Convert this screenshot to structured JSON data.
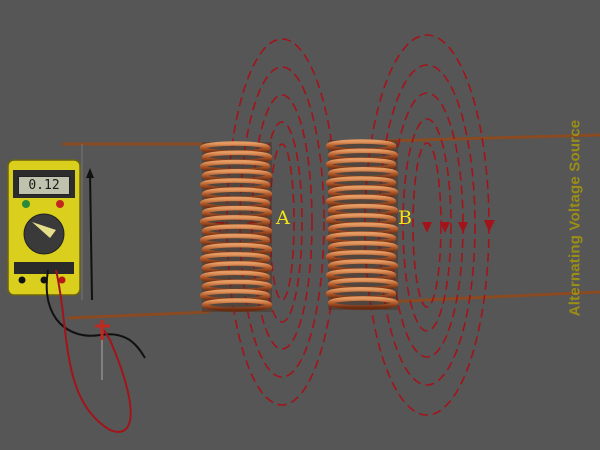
{
  "labels": {
    "coil_a": "A",
    "coil_b": "B",
    "source": "Alternating Voltage Source"
  },
  "multimeter": {
    "reading": "0.12"
  },
  "colors": {
    "background": "#565656",
    "copper": "#b0592a",
    "field_lines": "#a3141a",
    "label_yellow": "#f2e21a",
    "meter_body": "#d9cf1c"
  },
  "icons": [
    "multimeter-icon",
    "probe-icon",
    "coil-icon",
    "field-line-icon"
  ]
}
